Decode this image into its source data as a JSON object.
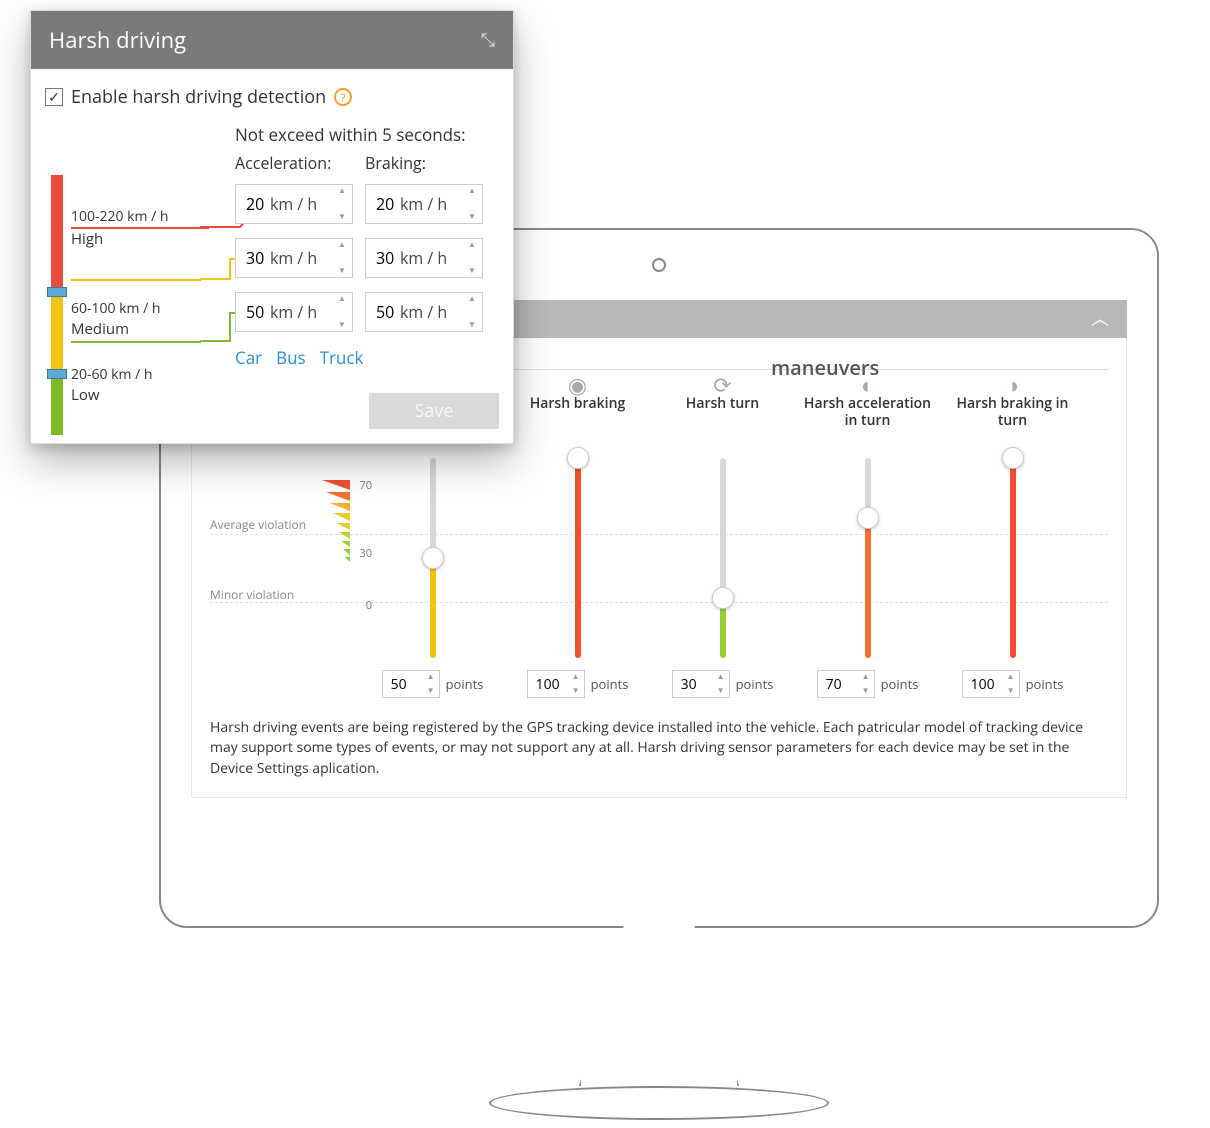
{
  "popup": {
    "title": "Harsh driving",
    "enable_label": "Enable harsh driving detection",
    "enable_checked": true,
    "not_exceed_label": "Not exceed within 5 seconds:",
    "col_accel": "Acceleration:",
    "col_brake": "Braking:",
    "unit": "km / h",
    "levels": {
      "high": {
        "range": "100-220 km / h",
        "name": "High",
        "color": "#e84c3d",
        "accel": "20",
        "brake": "20"
      },
      "medium": {
        "range": "60-100 km / h",
        "name": "Medium",
        "color": "#f1c40f",
        "accel": "30",
        "brake": "30"
      },
      "low": {
        "range": "20-60 km / h",
        "name": "Low",
        "color": "#7dbb2a",
        "accel": "50",
        "brake": "50"
      }
    },
    "presets": {
      "car": "Car",
      "bus": "Bus",
      "truck": "Truck"
    },
    "save_label": "Save"
  },
  "screen": {
    "section_title_fragment": "maneuvers",
    "legend": {
      "average": "Average violation",
      "minor": "Minor violation",
      "tick_70": "70",
      "tick_30": "30",
      "tick_0": "0"
    },
    "slider_max": 100,
    "points_label": "points",
    "maneuvers": [
      {
        "id": "harsh-accel-hidden",
        "title": "",
        "value": 50,
        "fill_color": "#f1c40f"
      },
      {
        "id": "harsh-braking",
        "title": "Harsh braking",
        "value": 100,
        "fill_color": "#f05030"
      },
      {
        "id": "harsh-turn",
        "title": "Harsh turn",
        "value": 30,
        "fill_color": "#9acd32"
      },
      {
        "id": "harsh-accel-turn",
        "title": "Harsh acceleration in turn",
        "value": 70,
        "fill_color": "#f07030"
      },
      {
        "id": "harsh-brake-turn",
        "title": "Harsh braking in turn",
        "value": 100,
        "fill_color": "#f05030"
      }
    ],
    "description": "Harsh driving events are being registered by the GPS tracking device installed into the vehicle. Each patricular model of tracking device may support some types of events, or may not support any at all. Harsh driving sensor parameters for each device may be set in the Device Settings aplication."
  },
  "colors": {
    "header_bg": "#7a7a7a",
    "accent_link": "#2b90d9",
    "slider_track": "#d8d8d8"
  }
}
